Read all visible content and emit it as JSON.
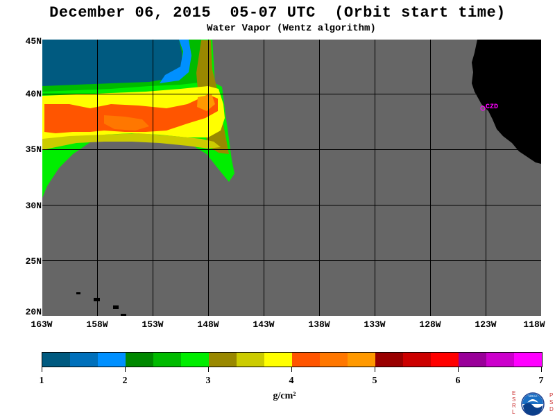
{
  "header": {
    "title": "December 06, 2015  05-07 UTC  (Orbit start time)",
    "subtitle": "Water Vapor (Wentz algorithm)"
  },
  "map": {
    "lat_labels": [
      "45N",
      "40N",
      "35N",
      "30N",
      "25N",
      "20N"
    ],
    "lon_labels": [
      "163W",
      "158W",
      "153W",
      "148W",
      "143W",
      "138W",
      "133W",
      "128W",
      "123W",
      "118W"
    ],
    "station_label": "CZD",
    "colors": {
      "no_data": "#666666",
      "land": "#000000",
      "grid": "#000000",
      "station": "#ff00ff"
    }
  },
  "colorbar": {
    "tick_labels": [
      "1",
      "2",
      "3",
      "4",
      "5",
      "6",
      "7"
    ],
    "units": "g/cm²",
    "colors": [
      "#005a80",
      "#0070bb",
      "#0090ff",
      "#008800",
      "#00bb00",
      "#00ee00",
      "#998800",
      "#cccc00",
      "#ffff00",
      "#ff5500",
      "#ff7700",
      "#ff9900",
      "#990000",
      "#cc0000",
      "#ff0000",
      "#990099",
      "#cc00cc",
      "#ff00ff"
    ]
  },
  "logo": {
    "left_letters": [
      "E",
      "S",
      "R",
      "L"
    ],
    "right_letters": [
      "P",
      "S",
      "D"
    ],
    "emblem_text": "NOAA"
  }
}
